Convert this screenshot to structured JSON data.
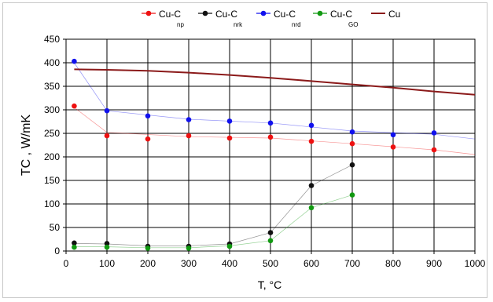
{
  "chart_data": {
    "type": "scatter",
    "xlabel": "T, °C",
    "ylabel": "TC , W/mK",
    "xlim": [
      0,
      1000
    ],
    "ylim": [
      0,
      450
    ],
    "x_ticks": [
      0,
      100,
      200,
      300,
      400,
      500,
      600,
      700,
      800,
      900,
      1000
    ],
    "y_ticks": [
      0,
      50,
      100,
      150,
      200,
      250,
      300,
      350,
      400,
      450
    ],
    "grid": true,
    "legend_position": "top",
    "series": [
      {
        "name": "Cu-C",
        "subscript": "np",
        "color": "#ee1111",
        "marker": "circle",
        "points": [
          [
            20,
            308
          ],
          [
            100,
            245
          ],
          [
            200,
            238
          ],
          [
            300,
            245
          ],
          [
            400,
            240
          ],
          [
            500,
            242
          ],
          [
            600,
            233
          ],
          [
            700,
            228
          ],
          [
            800,
            221
          ],
          [
            900,
            215
          ]
        ],
        "trend": [
          [
            20,
            305
          ],
          [
            100,
            252
          ],
          [
            300,
            243
          ],
          [
            500,
            240
          ],
          [
            700,
            228
          ],
          [
            900,
            215
          ],
          [
            1000,
            205
          ]
        ]
      },
      {
        "name": "Cu-C",
        "subscript": "nrk",
        "color": "#111111",
        "marker": "circle",
        "points": [
          [
            20,
            17
          ],
          [
            100,
            16
          ],
          [
            200,
            10
          ],
          [
            300,
            10
          ],
          [
            400,
            15
          ],
          [
            500,
            39
          ],
          [
            600,
            139
          ],
          [
            700,
            183
          ]
        ],
        "trend": [
          [
            20,
            16
          ],
          [
            100,
            15
          ],
          [
            200,
            11
          ],
          [
            300,
            11
          ],
          [
            400,
            15
          ],
          [
            500,
            39
          ],
          [
            600,
            139
          ],
          [
            700,
            183
          ]
        ]
      },
      {
        "name": "Cu-C",
        "subscript": "nrd",
        "color": "#1111ee",
        "marker": "circle",
        "points": [
          [
            20,
            403
          ],
          [
            100,
            298
          ],
          [
            200,
            287
          ],
          [
            300,
            279
          ],
          [
            400,
            276
          ],
          [
            500,
            272
          ],
          [
            600,
            267
          ],
          [
            700,
            253
          ],
          [
            800,
            247
          ],
          [
            900,
            251
          ]
        ],
        "trend": [
          [
            20,
            400
          ],
          [
            100,
            298
          ],
          [
            300,
            280
          ],
          [
            500,
            272
          ],
          [
            700,
            255
          ],
          [
            900,
            248
          ],
          [
            1000,
            238
          ]
        ]
      },
      {
        "name": "Cu-C",
        "subscript": "GO",
        "color": "#119911",
        "marker": "circle",
        "points": [
          [
            20,
            8
          ],
          [
            100,
            8
          ],
          [
            200,
            6
          ],
          [
            300,
            6
          ],
          [
            400,
            10
          ],
          [
            500,
            22
          ],
          [
            600,
            92
          ],
          [
            700,
            119
          ]
        ],
        "trend": [
          [
            20,
            9
          ],
          [
            100,
            9
          ],
          [
            200,
            7
          ],
          [
            300,
            7
          ],
          [
            400,
            11
          ],
          [
            500,
            22
          ],
          [
            600,
            92
          ],
          [
            700,
            119
          ]
        ]
      },
      {
        "name": "Cu",
        "subscript": "",
        "color": "#8b1a1a",
        "marker": "none",
        "line": [
          [
            20,
            386
          ],
          [
            100,
            385
          ],
          [
            200,
            383
          ],
          [
            300,
            379
          ],
          [
            400,
            374
          ],
          [
            500,
            368
          ],
          [
            600,
            361
          ],
          [
            700,
            354
          ],
          [
            800,
            347
          ],
          [
            900,
            339
          ],
          [
            1000,
            332
          ]
        ]
      }
    ]
  }
}
